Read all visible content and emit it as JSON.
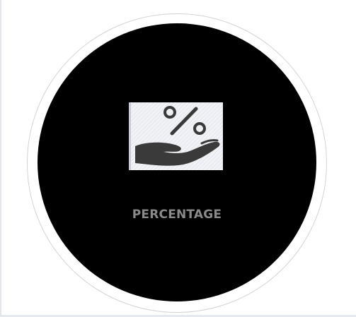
{
  "card": {
    "label": "PERCENTAGE",
    "icon": "percent-hand-icon",
    "colors": {
      "circle_fill": "#000000",
      "ring_stroke": "#d3d3d3",
      "label": "#8a8a8a",
      "icon_glyph": "#3a3a3a"
    }
  }
}
